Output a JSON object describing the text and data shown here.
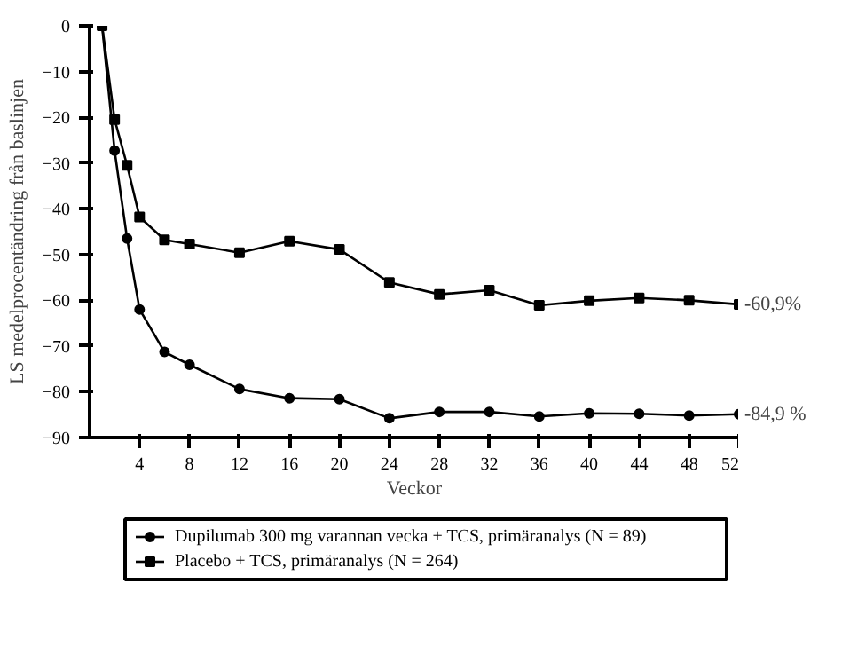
{
  "chart_data": {
    "type": "line",
    "xlabel": "Veckor",
    "ylabel": "LS medelprocentändring från baslinjen",
    "series": [
      {
        "name": "Dupilumab 300 mg varannan vecka + TCS, primäranalys (N = 89)",
        "color": "#000000",
        "marker": "circle",
        "x": [
          1,
          2,
          3,
          4,
          6,
          8,
          12,
          16,
          20,
          24,
          28,
          32,
          36,
          40,
          44,
          48,
          52
        ],
        "values": [
          0,
          -27.3,
          -46.5,
          -62.0,
          -71.3,
          -74.1,
          -79.4,
          -81.4,
          -81.6,
          -85.8,
          -84.4,
          -84.4,
          -85.4,
          -84.7,
          -84.8,
          -85.2,
          -84.9
        ]
      },
      {
        "name": "Placebo + TCS, primäranalys (N = 264)",
        "color": "#000000",
        "marker": "square",
        "x": [
          1,
          2,
          3,
          4,
          6,
          8,
          12,
          16,
          20,
          24,
          28,
          32,
          36,
          40,
          44,
          48,
          52
        ],
        "values": [
          0,
          -20.5,
          -30.5,
          -41.8,
          -46.8,
          -47.7,
          -49.6,
          -47.1,
          -48.9,
          -56.1,
          -58.7,
          -57.8,
          -61.1,
          -60.1,
          -59.5,
          -60.0,
          -60.9
        ]
      }
    ],
    "xlim": [
      0,
      52
    ],
    "ylim": [
      -90,
      0
    ],
    "xticks": [
      4,
      8,
      12,
      16,
      20,
      24,
      28,
      32,
      36,
      40,
      44,
      48,
      52
    ],
    "yticks": [
      0,
      -10,
      -20,
      -30,
      -40,
      -50,
      -60,
      -70,
      -80,
      -90
    ],
    "annotations": [
      {
        "text": "-60,9%",
        "x": 52,
        "y": -60.9
      },
      {
        "text": "-84,9 %",
        "x": 52,
        "y": -84.9
      }
    ],
    "grid": false,
    "legend": "bottom",
    "line_style": "solid"
  }
}
